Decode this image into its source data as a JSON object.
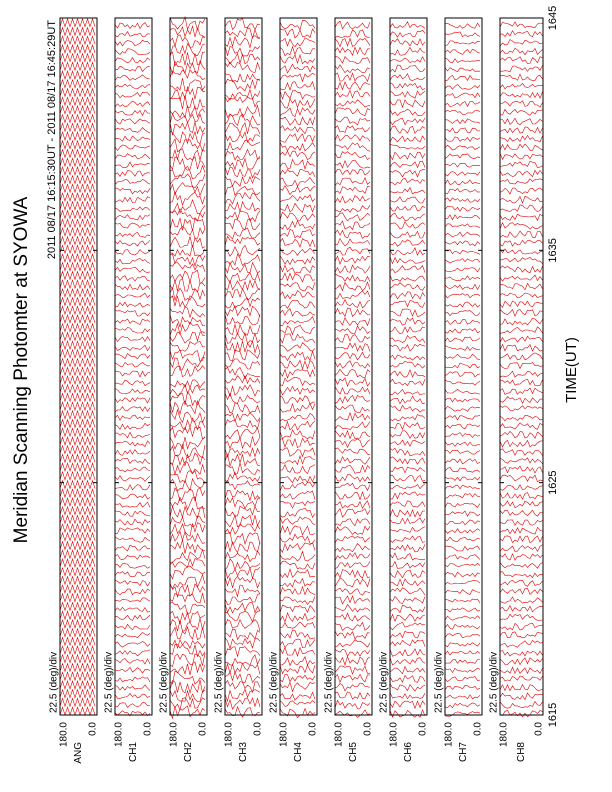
{
  "chart_data": {
    "type": "stacked-scan",
    "title": "Meridian Scanning Photomter at SYOWA",
    "subtitle": "2011 08/17 16:15:30UT - 2011 08/17 16:45:29UT",
    "xlabel": "TIME(UT)",
    "xlim": [
      1615,
      1645
    ],
    "xticks": [
      1615,
      1625,
      1635,
      1645
    ],
    "ylim": [
      0,
      180
    ],
    "yticks": [
      {
        "value": 0,
        "label": "0.0"
      },
      {
        "value": 180,
        "label": "180.0"
      }
    ],
    "scale_label": "22.5 (deg)/div",
    "panels": [
      "ANG",
      "CH1",
      "CH2",
      "CH3",
      "CH4",
      "CH5",
      "CH6",
      "CH7",
      "CH8"
    ],
    "color": "#e00000"
  }
}
